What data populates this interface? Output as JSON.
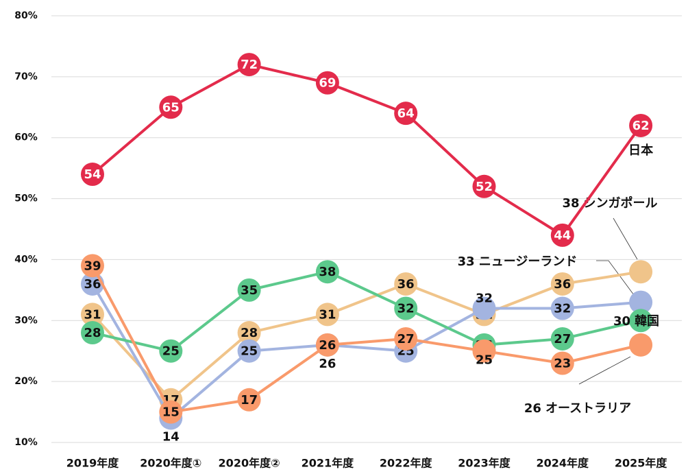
{
  "chart_data": {
    "type": "line",
    "categories": [
      "2019年度",
      "2020年度①",
      "2020年度②",
      "2021年度",
      "2022年度",
      "2023年度",
      "2024年度",
      "2025年度"
    ],
    "ylim": [
      10,
      80
    ],
    "yticks": [
      {
        "value": 10,
        "label": "10%"
      },
      {
        "value": 20,
        "label": "20%"
      },
      {
        "value": 30,
        "label": "30%"
      },
      {
        "value": 40,
        "label": "40%"
      },
      {
        "value": 50,
        "label": "50%"
      },
      {
        "value": 60,
        "label": "60%"
      },
      {
        "value": 70,
        "label": "70%"
      },
      {
        "value": 80,
        "label": "80%"
      }
    ],
    "grid": true,
    "series": [
      {
        "name": "シンガポール",
        "color": "#f0c48a",
        "values": [
          31,
          17,
          28,
          31,
          36,
          31,
          36,
          38
        ]
      },
      {
        "name": "ニュージーランド",
        "color": "#a3b4e0",
        "values": [
          36,
          14,
          25,
          26,
          25,
          32,
          32,
          33
        ]
      },
      {
        "name": "韓国",
        "color": "#5cc98c",
        "values": [
          28,
          25,
          35,
          38,
          32,
          26,
          27,
          30
        ]
      },
      {
        "name": "オーストラリア",
        "color": "#f99a6b",
        "values": [
          39,
          15,
          17,
          26,
          27,
          25,
          23,
          26
        ]
      },
      {
        "name": "日本",
        "color": "#e32b4b",
        "values": [
          54,
          65,
          72,
          69,
          64,
          52,
          44,
          62
        ]
      }
    ]
  }
}
